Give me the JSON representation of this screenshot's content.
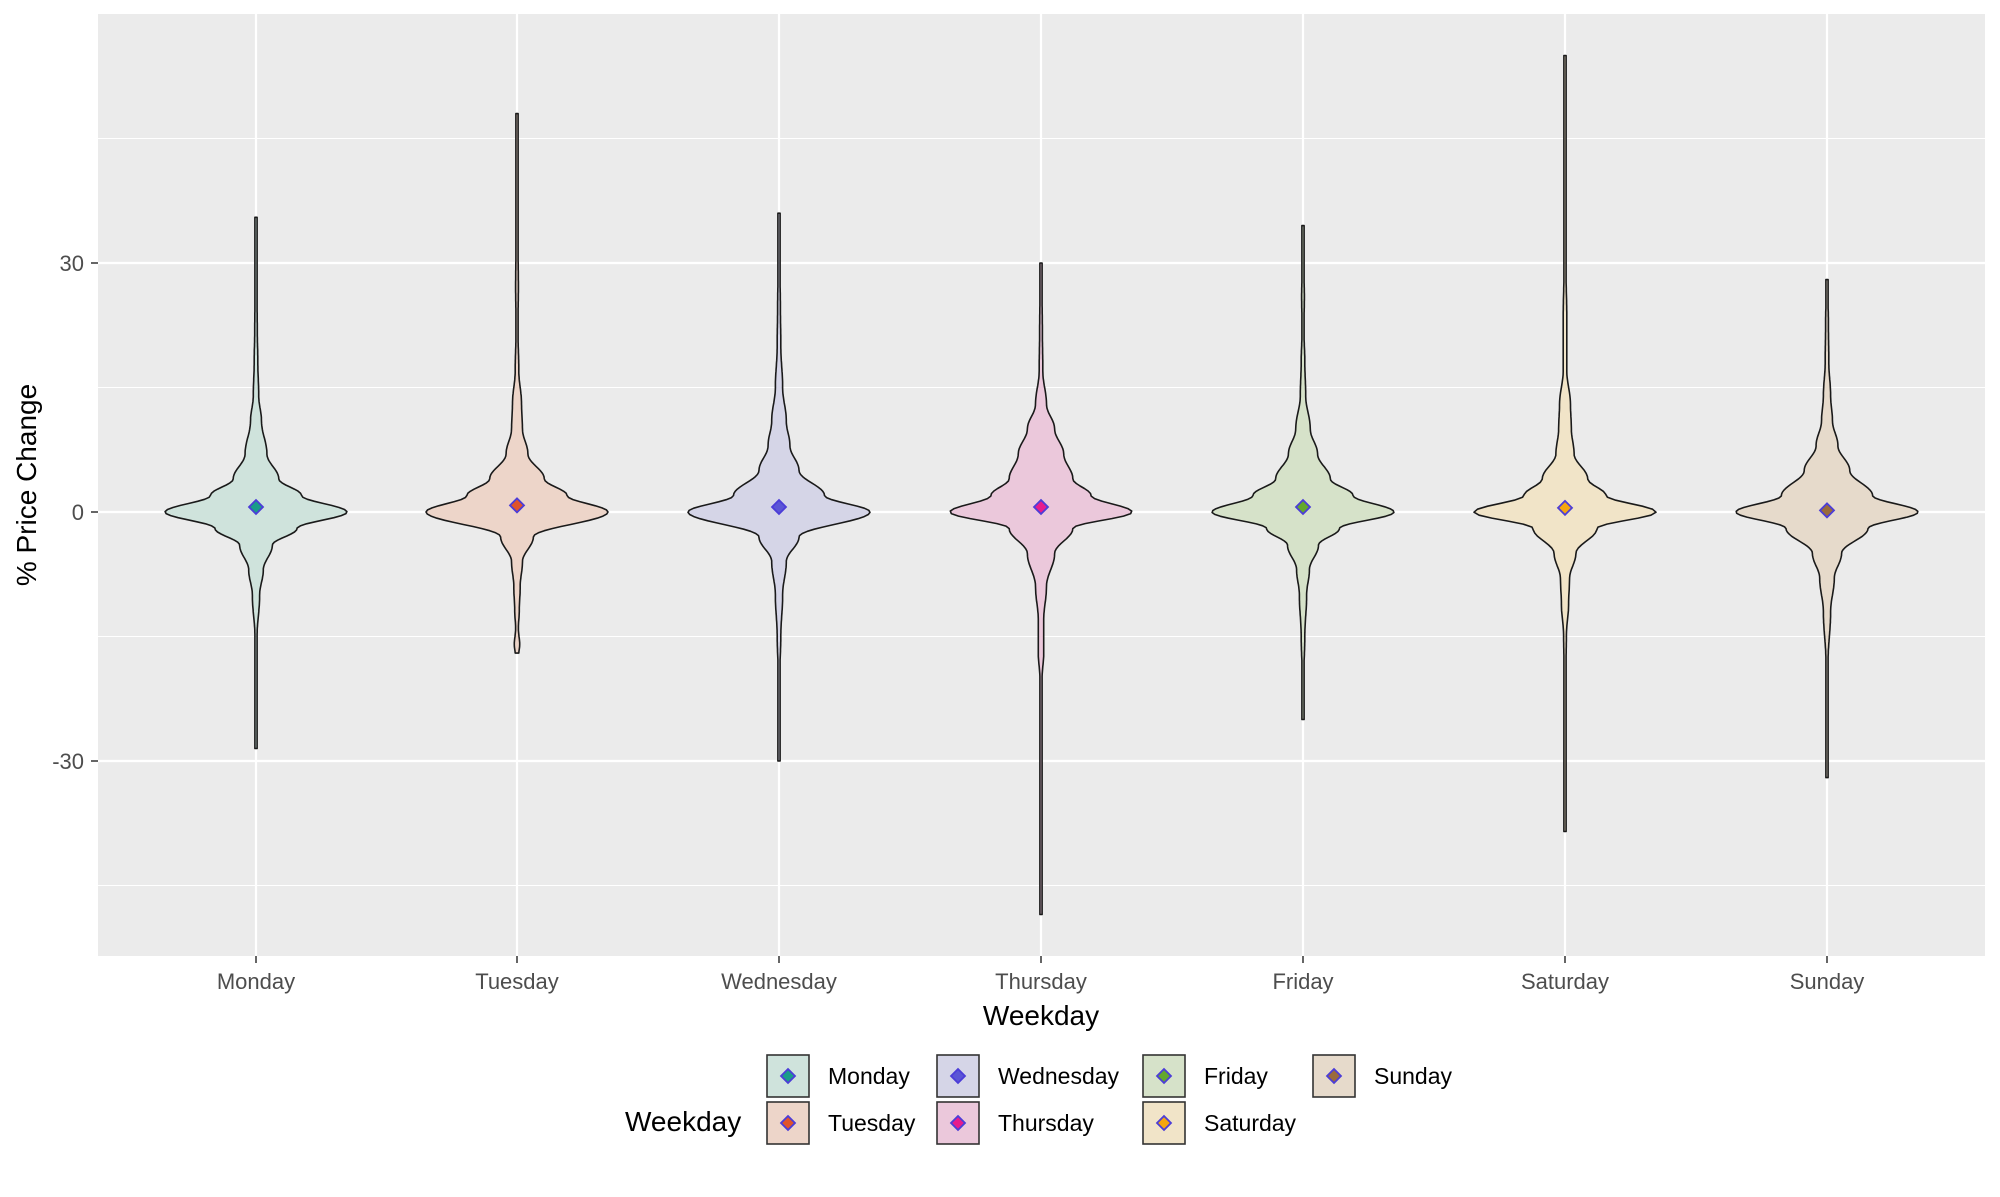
{
  "chart_data": {
    "type": "violin",
    "title": "",
    "xlabel": "Weekday",
    "ylabel": "% Price Change",
    "ylim": [
      -52,
      63
    ],
    "yticks": [
      -30,
      0,
      30
    ],
    "ytick_labels": [
      "-30",
      "0",
      "30"
    ],
    "grid": true,
    "background": "#ebebeb",
    "categories": [
      "Monday",
      "Tuesday",
      "Wednesday",
      "Thursday",
      "Friday",
      "Saturday",
      "Sunday"
    ],
    "series": [
      {
        "name": "Monday",
        "fill": "#cfe3dc",
        "point_color": "#1a9c8a",
        "min": -28.5,
        "max": 35.5,
        "mean": 0.6,
        "profile": [
          [
            -28.5,
            0.005
          ],
          [
            -22,
            0.006
          ],
          [
            -15,
            0.012
          ],
          [
            -10,
            0.04
          ],
          [
            -7,
            0.08
          ],
          [
            -4,
            0.18
          ],
          [
            -2,
            0.45
          ],
          [
            0,
            1.0
          ],
          [
            2,
            0.5
          ],
          [
            4,
            0.25
          ],
          [
            7,
            0.12
          ],
          [
            11,
            0.06
          ],
          [
            14,
            0.03
          ],
          [
            18,
            0.02
          ],
          [
            22,
            0.014
          ],
          [
            27,
            0.01
          ],
          [
            30,
            0.008
          ],
          [
            35.5,
            0.004
          ]
        ]
      },
      {
        "name": "Tuesday",
        "fill": "#edd5c9",
        "point_color": "#e0542b",
        "min": -17,
        "max": 48,
        "mean": 0.8,
        "profile": [
          [
            -17,
            0.02
          ],
          [
            -16,
            0.03
          ],
          [
            -14,
            0.015
          ],
          [
            -12,
            0.025
          ],
          [
            -9,
            0.035
          ],
          [
            -6,
            0.06
          ],
          [
            -3,
            0.18
          ],
          [
            0,
            1.0
          ],
          [
            2,
            0.55
          ],
          [
            4,
            0.3
          ],
          [
            7,
            0.12
          ],
          [
            10,
            0.06
          ],
          [
            13,
            0.05
          ],
          [
            17,
            0.02
          ],
          [
            22,
            0.01
          ],
          [
            27,
            0.015
          ],
          [
            35,
            0.008
          ],
          [
            48,
            0.004
          ]
        ]
      },
      {
        "name": "Wednesday",
        "fill": "#d5d5e7",
        "point_color": "#5b55d6",
        "min": -30,
        "max": 36,
        "mean": 0.6,
        "profile": [
          [
            -30,
            0.005
          ],
          [
            -25,
            0.012
          ],
          [
            -20,
            0.006
          ],
          [
            -15,
            0.02
          ],
          [
            -10,
            0.04
          ],
          [
            -6,
            0.08
          ],
          [
            -3,
            0.22
          ],
          [
            0,
            1.0
          ],
          [
            2,
            0.5
          ],
          [
            5,
            0.22
          ],
          [
            8,
            0.12
          ],
          [
            11,
            0.08
          ],
          [
            15,
            0.04
          ],
          [
            20,
            0.02
          ],
          [
            25,
            0.015
          ],
          [
            30,
            0.008
          ],
          [
            36,
            0.004
          ]
        ]
      },
      {
        "name": "Thursday",
        "fill": "#ebc8db",
        "point_color": "#e61c8c",
        "min": -48.5,
        "max": 30,
        "mean": 0.6,
        "profile": [
          [
            -48.5,
            0.004
          ],
          [
            -40,
            0.005
          ],
          [
            -30,
            0.007
          ],
          [
            -25,
            0.01
          ],
          [
            -20,
            0.012
          ],
          [
            -17,
            0.03
          ],
          [
            -13,
            0.03
          ],
          [
            -9,
            0.06
          ],
          [
            -5,
            0.15
          ],
          [
            -2,
            0.35
          ],
          [
            0,
            1.0
          ],
          [
            2,
            0.55
          ],
          [
            4,
            0.35
          ],
          [
            7,
            0.25
          ],
          [
            10,
            0.15
          ],
          [
            13,
            0.06
          ],
          [
            17,
            0.02
          ],
          [
            22,
            0.015
          ],
          [
            26,
            0.012
          ],
          [
            30,
            0.005
          ]
        ]
      },
      {
        "name": "Friday",
        "fill": "#d6e2c9",
        "point_color": "#63a82e",
        "min": -25,
        "max": 34.5,
        "mean": 0.6,
        "profile": [
          [
            -25,
            0.005
          ],
          [
            -20,
            0.008
          ],
          [
            -15,
            0.02
          ],
          [
            -10,
            0.04
          ],
          [
            -7,
            0.07
          ],
          [
            -4,
            0.17
          ],
          [
            -2,
            0.4
          ],
          [
            0,
            1.0
          ],
          [
            2,
            0.55
          ],
          [
            4,
            0.3
          ],
          [
            7,
            0.16
          ],
          [
            10,
            0.08
          ],
          [
            14,
            0.03
          ],
          [
            18,
            0.02
          ],
          [
            22,
            0.01
          ],
          [
            26,
            0.015
          ],
          [
            30,
            0.007
          ],
          [
            34.5,
            0.004
          ]
        ]
      },
      {
        "name": "Saturday",
        "fill": "#f1e4c8",
        "point_color": "#f5a60f",
        "min": -38.5,
        "max": 55,
        "mean": 0.5,
        "profile": [
          [
            -38.5,
            0.004
          ],
          [
            -30,
            0.012
          ],
          [
            -25,
            0.005
          ],
          [
            -20,
            0.008
          ],
          [
            -15,
            0.015
          ],
          [
            -11,
            0.04
          ],
          [
            -8,
            0.05
          ],
          [
            -5,
            0.12
          ],
          [
            -2,
            0.35
          ],
          [
            0,
            1.0
          ],
          [
            2,
            0.45
          ],
          [
            4,
            0.25
          ],
          [
            7,
            0.1
          ],
          [
            10,
            0.07
          ],
          [
            13,
            0.06
          ],
          [
            17,
            0.02
          ],
          [
            23,
            0.02
          ],
          [
            30,
            0.01
          ],
          [
            40,
            0.005
          ],
          [
            55,
            0.004
          ]
        ]
      },
      {
        "name": "Sunday",
        "fill": "#e6dacb",
        "point_color": "#9a6b3c",
        "min": -32,
        "max": 28,
        "mean": 0.2,
        "profile": [
          [
            -32,
            0.004
          ],
          [
            -25,
            0.006
          ],
          [
            -18,
            0.012
          ],
          [
            -12,
            0.04
          ],
          [
            -8,
            0.08
          ],
          [
            -5,
            0.16
          ],
          [
            -2,
            0.45
          ],
          [
            0,
            1.0
          ],
          [
            2,
            0.5
          ],
          [
            5,
            0.25
          ],
          [
            8,
            0.12
          ],
          [
            11,
            0.06
          ],
          [
            14,
            0.04
          ],
          [
            18,
            0.02
          ],
          [
            23,
            0.015
          ],
          [
            28,
            0.004
          ]
        ]
      }
    ],
    "legend": {
      "title": "Weekday",
      "position": "bottom",
      "items": [
        "Monday",
        "Tuesday",
        "Wednesday",
        "Thursday",
        "Friday",
        "Saturday",
        "Sunday"
      ]
    }
  }
}
